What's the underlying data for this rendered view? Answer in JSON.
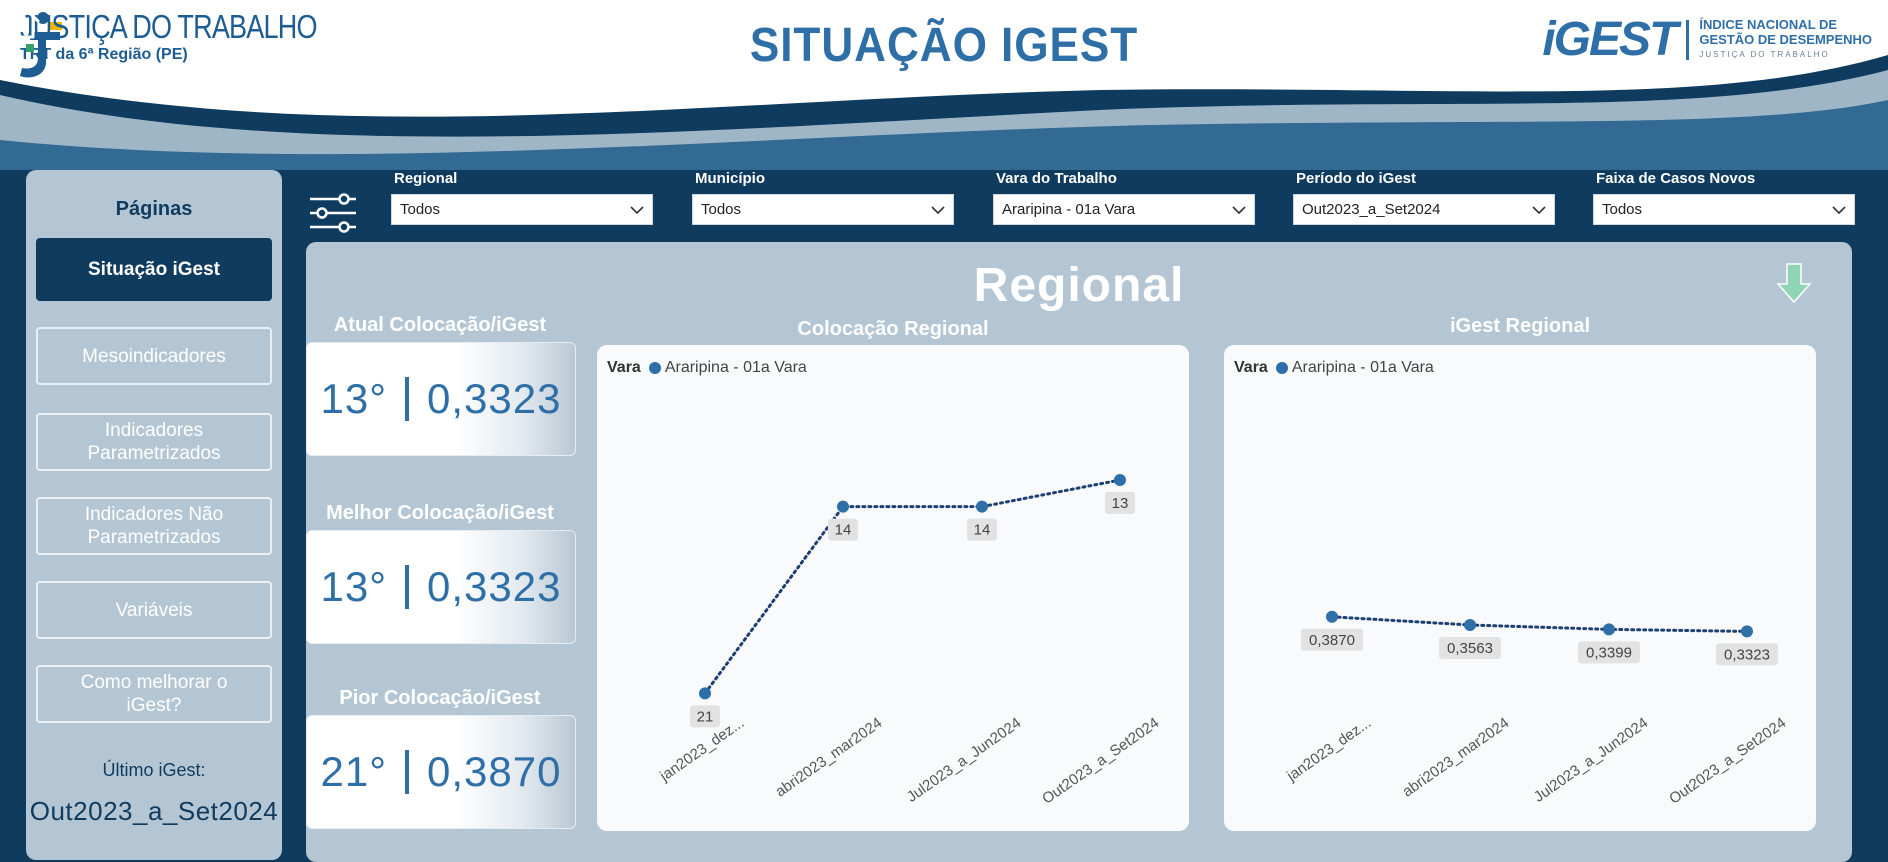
{
  "header": {
    "org_title": "JUSTIÇA DO TRABALHO",
    "org_sub": "TRT da 6ª Região (PE)",
    "page_title": "SITUAÇÃO IGEST",
    "igest_logo": "iGEST",
    "igest_desc_1": "ÍNDICE NACIONAL DE",
    "igest_desc_2": "GESTÃO DE DESEMPENHO",
    "igest_desc_3": "JUSTIÇA DO TRABALHO"
  },
  "sidebar": {
    "heading": "Páginas",
    "items": [
      {
        "label": "Situação iGest",
        "active": true
      },
      {
        "label": "Mesoindicadores"
      },
      {
        "label": "Indicadores Parametrizados"
      },
      {
        "label": "Indicadores Não Parametrizados"
      },
      {
        "label": "Variáveis"
      },
      {
        "label": "Como melhorar o iGest?"
      }
    ],
    "last_label": "Último iGest:",
    "last_value": "Out2023_a_Set2024"
  },
  "filters": [
    {
      "label": "Regional",
      "value": "Todos"
    },
    {
      "label": "Município",
      "value": "Todos"
    },
    {
      "label": "Vara do Trabalho",
      "value": "Araripina - 01a Vara"
    },
    {
      "label": "Período do iGest",
      "value": "Out2023_a_Set2024"
    },
    {
      "label": "Faixa de Casos Novos",
      "value": "Todos"
    }
  ],
  "main": {
    "title": "Regional",
    "kpis": [
      {
        "label": "Atual Colocação/iGest",
        "position": "13°",
        "score": "0,3323"
      },
      {
        "label": "Melhor Colocação/iGest",
        "position": "13°",
        "score": "0,3323"
      },
      {
        "label": "Pior Colocação/iGest",
        "position": "21°",
        "score": "0,3870"
      }
    ]
  },
  "colors": {
    "navy": "#0f3b5f",
    "accent": "#2f6fa8",
    "panel": "#b4c6d3",
    "arrow": "#8fd4b4"
  },
  "icons": [
    "home-icon",
    "filter-icon",
    "chevron-down-icon",
    "down-arrow-icon"
  ],
  "chart_data": [
    {
      "type": "line",
      "title": "Colocação Regional",
      "legend_title": "Vara",
      "categories": [
        "jan2023_dez...",
        "abri2023_mar2024",
        "Jul2023_a_Jun2024",
        "Out2023_a_Set2024"
      ],
      "series": [
        {
          "name": "Araripina  - 01a Vara",
          "values": [
            21,
            14,
            14,
            13
          ],
          "labels": [
            "21",
            "14",
            "14",
            "13"
          ]
        }
      ],
      "inverted_axis": true,
      "ylim": [
        22,
        10
      ]
    },
    {
      "type": "line",
      "title": "iGest Regional",
      "legend_title": "Vara",
      "categories": [
        "jan2023_dez...",
        "abri2023_mar2024",
        "Jul2023_a_Jun2024",
        "Out2023_a_Set2024"
      ],
      "series": [
        {
          "name": "Araripina  - 01a Vara",
          "values": [
            0.387,
            0.3563,
            0.3399,
            0.3323
          ],
          "labels": [
            "0,3870",
            "0,3563",
            "0,3399",
            "0,3323"
          ]
        }
      ],
      "ylim": [
        0,
        1.2
      ]
    }
  ]
}
